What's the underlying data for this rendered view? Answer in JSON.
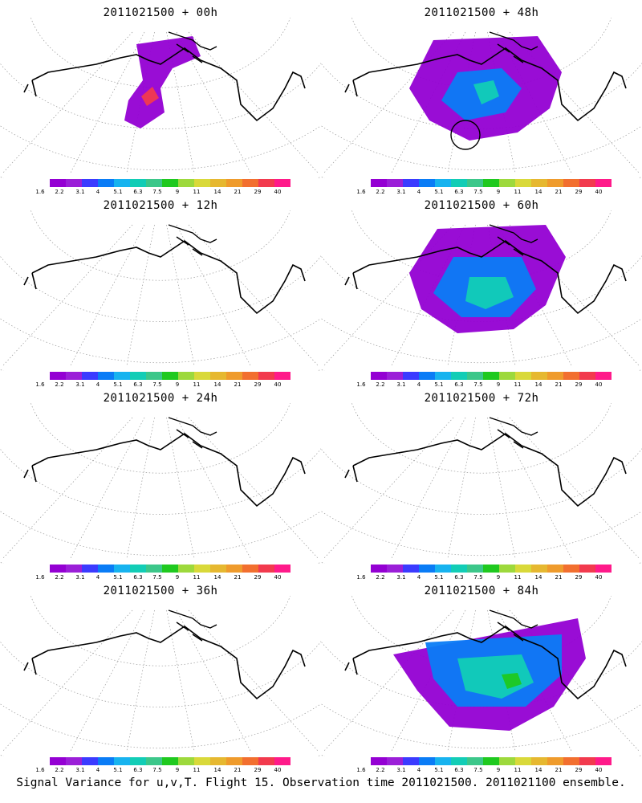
{
  "colors": {
    "scale": [
      "#9400d3",
      "#9b1fd8",
      "#3b3bff",
      "#0a7cf6",
      "#17b3ef",
      "#12cdb6",
      "#3cc78a",
      "#1fc91f",
      "#9dd93c",
      "#d9d93a",
      "#e6b830",
      "#ef9b2c",
      "#f26f2f",
      "#f23a4e",
      "#ff1a8a"
    ]
  },
  "colorbar": {
    "labels": [
      "1.6",
      "2.2",
      "3.1",
      "4",
      "5.1",
      "6.3",
      "7.5",
      "9",
      "11",
      "14",
      "21",
      "29",
      "40"
    ]
  },
  "panels": [
    {
      "title": "2011021500 + 00h",
      "col": 0,
      "row": 0,
      "level": 0
    },
    {
      "title": "2011021500 + 48h",
      "col": 1,
      "row": 0,
      "level": 3
    },
    {
      "title": "2011021500 + 12h",
      "col": 0,
      "row": 1,
      "level": 1
    },
    {
      "title": "2011021500 + 60h",
      "col": 1,
      "row": 1,
      "level": 4
    },
    {
      "title": "2011021500 + 24h",
      "col": 0,
      "row": 2,
      "level": 2
    },
    {
      "title": "2011021500 + 72h",
      "col": 1,
      "row": 2,
      "level": 4
    },
    {
      "title": "2011021500 + 36h",
      "col": 0,
      "row": 3,
      "level": 2
    },
    {
      "title": "2011021500 + 84h",
      "col": 1,
      "row": 3,
      "level": 5
    }
  ],
  "footer": "Signal Variance for u,v,T. Flight 15. Observation time 2011021500. 2011021100 ensemble."
}
